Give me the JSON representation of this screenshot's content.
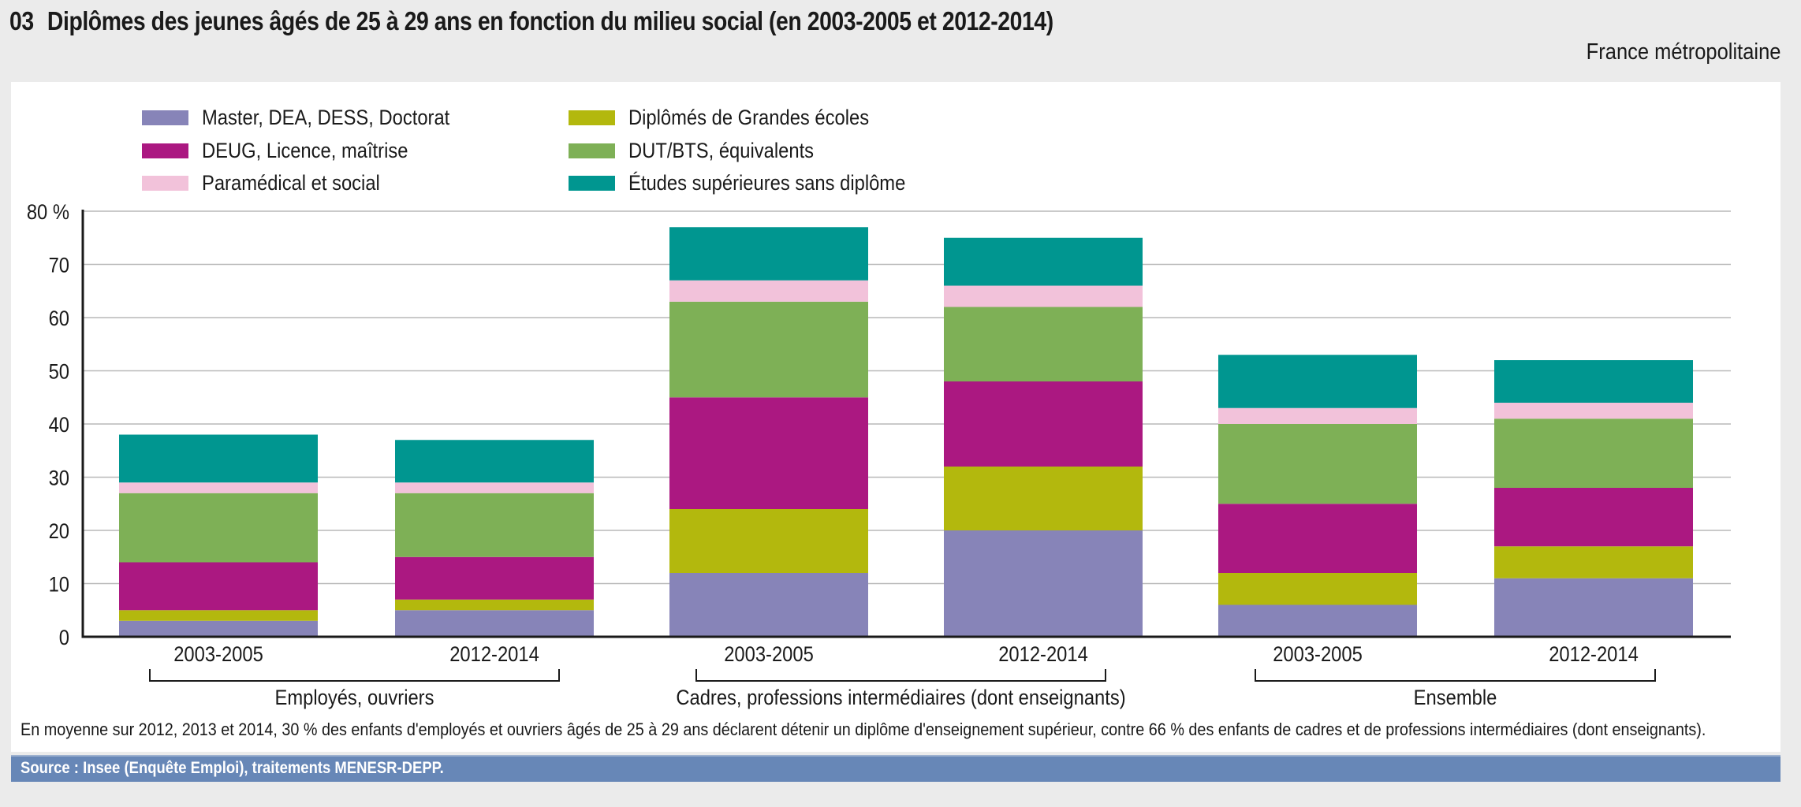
{
  "header": {
    "number": "03",
    "title": "Diplômes des jeunes âgés de 25 à 29 ans en fonction du milieu social (en 2003-2005 et 2012-2014)",
    "subtitle": "France métropolitaine"
  },
  "note": "En moyenne sur  2012, 2013 et 2014, 30 % des enfants d'employés et ouvriers âgés de 25 à 29 ans déclarent détenir un diplôme d'enseignement supérieur, contre 66 % des enfants de cadres et de professions intermédiaires (dont enseignants).",
  "source": "Source : Insee (Enquête Emploi), traitements MENESR-DEPP.",
  "chart_data": {
    "type": "bar",
    "stacked": true,
    "title": "Diplômes des jeunes âgés de 25 à 29 ans en fonction du milieu social (en 2003-2005 et 2012-2014)",
    "xlabel": "",
    "ylabel": "",
    "ylim": [
      0,
      80
    ],
    "yticks": [
      0,
      10,
      20,
      30,
      40,
      50,
      60,
      70,
      80
    ],
    "ytick_labels": [
      "0",
      "10",
      "20",
      "30",
      "40",
      "50",
      "60",
      "70",
      "80 %"
    ],
    "grid": true,
    "legend_position": "top",
    "categories": [
      "2003-2005",
      "2012-2014",
      "2003-2005",
      "2012-2014",
      "2003-2005",
      "2012-2014"
    ],
    "groups": [
      {
        "label": "Employés, ouvriers",
        "categories": [
          0,
          1
        ]
      },
      {
        "label": "Cadres, professions intermédiaires (dont enseignants)",
        "categories": [
          2,
          3
        ]
      },
      {
        "label": "Ensemble",
        "categories": [
          4,
          5
        ]
      }
    ],
    "series": [
      {
        "name": "Master, DEA, DESS, Doctorat",
        "color": "#8784b8",
        "values": [
          3,
          5,
          12,
          20,
          6,
          11
        ]
      },
      {
        "name": "Diplômés de Grandes écoles",
        "color": "#b3b80d",
        "values": [
          2,
          2,
          12,
          12,
          6,
          6
        ]
      },
      {
        "name": "DEUG, Licence, maîtrise",
        "color": "#ab1881",
        "values": [
          9,
          8,
          21,
          16,
          13,
          11
        ]
      },
      {
        "name": "DUT/BTS, équivalents",
        "color": "#7eb056",
        "values": [
          13,
          12,
          18,
          14,
          15,
          13
        ]
      },
      {
        "name": "Paramédical et social",
        "color": "#f2c2da",
        "values": [
          2,
          2,
          4,
          4,
          3,
          3
        ]
      },
      {
        "name": "Études supérieures sans diplôme",
        "color": "#009690",
        "values": [
          9,
          8,
          10,
          9,
          10,
          8
        ]
      }
    ],
    "legend_order": [
      0,
      2,
      4,
      1,
      3,
      5
    ]
  }
}
